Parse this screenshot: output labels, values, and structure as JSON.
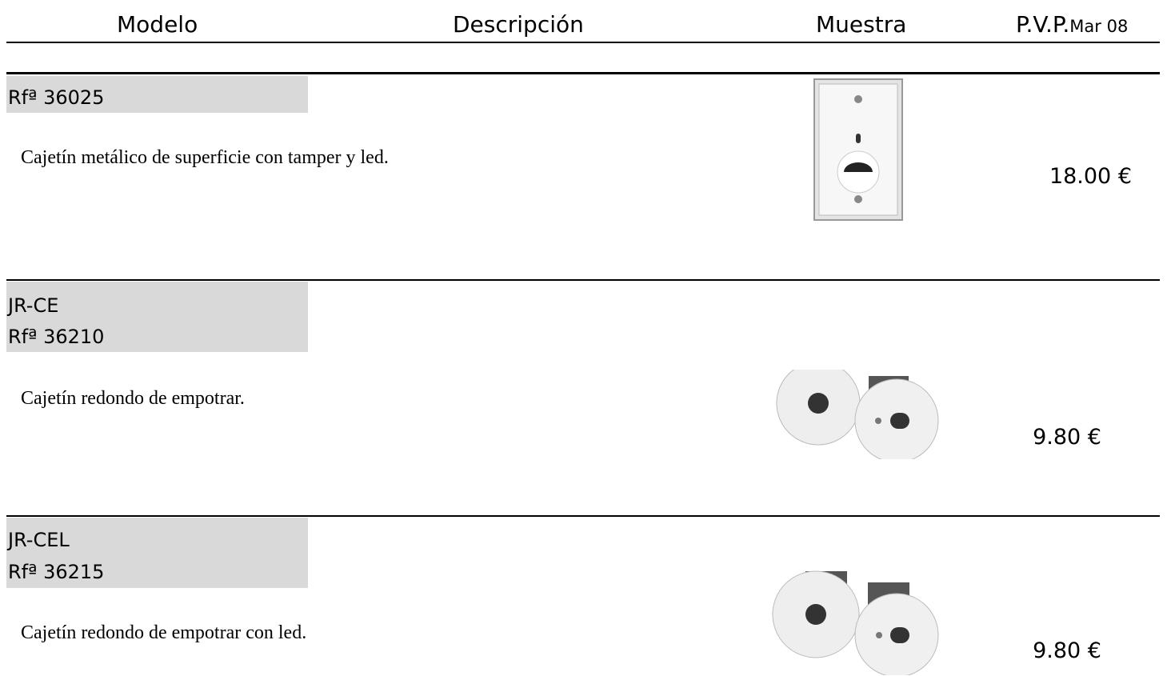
{
  "header": {
    "columns": [
      "Modelo",
      "Descripción",
      "Muestra",
      "P.V.P."
    ],
    "price_date": "Mar 08"
  },
  "rows": [
    {
      "model": [
        "Rfª 36025"
      ],
      "description": "Cajetín metálico de superficie con tamper y led.",
      "price": "18.00 €"
    },
    {
      "model": [
        "JR-CE",
        "Rfª 36210"
      ],
      "description": "Cajetín redondo de empotrar.",
      "price": "9.80 €"
    },
    {
      "model": [
        "JR-CEL",
        "Rfª 36215"
      ],
      "description": "Cajetín redondo de empotrar con led.",
      "price": "9.80 €"
    }
  ]
}
